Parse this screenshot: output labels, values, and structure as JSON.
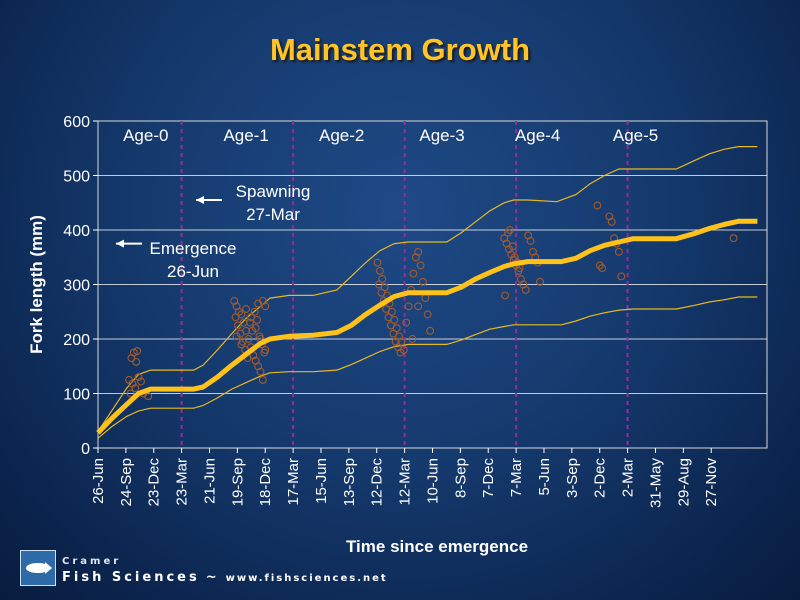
{
  "slide": {
    "title": "Mainstem Growth",
    "footer": {
      "brand_top": "Cramer",
      "brand_bottom": "Fish Sciences",
      "separator": "~",
      "url": "www.fishsciences.net",
      "logo_icon": "fish-logo-icon"
    }
  },
  "chart_data": {
    "type": "line",
    "ylabel": "Fork length (mm)",
    "xlabel": "Time since emergence",
    "ylim": [
      0,
      600
    ],
    "yticks": [
      0,
      100,
      200,
      300,
      400,
      500,
      600
    ],
    "grid": "horizontal",
    "colors": {
      "mean": "#ffc21a",
      "bounds": "#e8b820",
      "points": "#a55a2a",
      "dividers": "#9a2a9a",
      "grid": "#ffffff"
    },
    "x_tick_labels": [
      "26-Jun",
      "24-Sep",
      "23-Dec",
      "23-Mar",
      "21-Jun",
      "19-Sep",
      "18-Dec",
      "17-Mar",
      "15-Jun",
      "13-Sep",
      "12-Dec",
      "12-Mar",
      "10-Jun",
      "8-Sep",
      "7-Dec",
      "7-Mar",
      "5-Jun",
      "3-Sep",
      "2-Dec",
      "2-Mar",
      "31-May",
      "29-Aug",
      "27-Nov"
    ],
    "age_labels": [
      {
        "label": "Age-0",
        "center": 1.0
      },
      {
        "label": "Age-1",
        "center": 3.1
      },
      {
        "label": "Age-2",
        "center": 5.1
      },
      {
        "label": "Age-3",
        "center": 7.2
      },
      {
        "label": "Age-4",
        "center": 9.2
      },
      {
        "label": "Age-5",
        "center": 11.25
      }
    ],
    "age_dividers": [
      3,
      7,
      11,
      15,
      19
    ],
    "annotations": [
      {
        "name": "spawning",
        "lines": [
          "Spawning",
          "27-Mar"
        ],
        "arrow_y": 455
      },
      {
        "name": "emergence",
        "lines": [
          "Emergence",
          "26-Jun"
        ],
        "arrow_y": 375
      }
    ],
    "series": [
      {
        "role": "mean",
        "points": [
          [
            0,
            28
          ],
          [
            0.3,
            55
          ],
          [
            0.6,
            80
          ],
          [
            0.85,
            100
          ],
          [
            1.1,
            108
          ],
          [
            2.0,
            108
          ],
          [
            2.2,
            112
          ],
          [
            2.5,
            130
          ],
          [
            2.8,
            152
          ],
          [
            3.1,
            172
          ],
          [
            3.4,
            192
          ],
          [
            3.6,
            200
          ],
          [
            4.0,
            205
          ],
          [
            4.5,
            207
          ],
          [
            5.0,
            212
          ],
          [
            5.3,
            225
          ],
          [
            5.6,
            245
          ],
          [
            5.9,
            262
          ],
          [
            6.2,
            278
          ],
          [
            6.5,
            285
          ],
          [
            7.3,
            285
          ],
          [
            7.6,
            295
          ],
          [
            7.9,
            310
          ],
          [
            8.2,
            322
          ],
          [
            8.5,
            333
          ],
          [
            8.7,
            338
          ],
          [
            9.0,
            342
          ],
          [
            9.7,
            342
          ],
          [
            10.0,
            348
          ],
          [
            10.3,
            362
          ],
          [
            10.6,
            372
          ],
          [
            10.9,
            378
          ],
          [
            11.2,
            384
          ],
          [
            12.1,
            384
          ],
          [
            12.5,
            394
          ],
          [
            12.8,
            403
          ],
          [
            13.1,
            410
          ],
          [
            13.4,
            416
          ],
          [
            13.8,
            416
          ]
        ]
      },
      {
        "role": "upper",
        "points": [
          [
            0,
            30
          ],
          [
            0.3,
            70
          ],
          [
            0.6,
            110
          ],
          [
            0.85,
            135
          ],
          [
            1.1,
            143
          ],
          [
            2.0,
            143
          ],
          [
            2.2,
            152
          ],
          [
            2.5,
            180
          ],
          [
            2.8,
            210
          ],
          [
            3.1,
            238
          ],
          [
            3.4,
            260
          ],
          [
            3.6,
            275
          ],
          [
            4.0,
            280
          ],
          [
            4.5,
            280
          ],
          [
            5.0,
            290
          ],
          [
            5.3,
            315
          ],
          [
            5.6,
            340
          ],
          [
            5.9,
            362
          ],
          [
            6.2,
            375
          ],
          [
            6.5,
            378
          ],
          [
            7.3,
            378
          ],
          [
            7.6,
            395
          ],
          [
            7.9,
            415
          ],
          [
            8.2,
            435
          ],
          [
            8.5,
            450
          ],
          [
            8.7,
            455
          ],
          [
            9.0,
            455
          ],
          [
            9.6,
            452
          ],
          [
            10.0,
            465
          ],
          [
            10.3,
            485
          ],
          [
            10.6,
            500
          ],
          [
            10.9,
            512
          ],
          [
            11.2,
            512
          ],
          [
            12.1,
            512
          ],
          [
            12.5,
            528
          ],
          [
            12.8,
            540
          ],
          [
            13.1,
            548
          ],
          [
            13.4,
            553
          ],
          [
            13.8,
            553
          ]
        ]
      },
      {
        "role": "lower",
        "points": [
          [
            0,
            18
          ],
          [
            0.3,
            40
          ],
          [
            0.6,
            58
          ],
          [
            0.85,
            68
          ],
          [
            1.1,
            73
          ],
          [
            2.0,
            73
          ],
          [
            2.2,
            78
          ],
          [
            2.5,
            92
          ],
          [
            2.8,
            108
          ],
          [
            3.1,
            120
          ],
          [
            3.4,
            132
          ],
          [
            3.6,
            138
          ],
          [
            4.0,
            140
          ],
          [
            4.5,
            140
          ],
          [
            5.0,
            143
          ],
          [
            5.3,
            153
          ],
          [
            5.6,
            165
          ],
          [
            5.9,
            177
          ],
          [
            6.2,
            186
          ],
          [
            6.5,
            190
          ],
          [
            7.3,
            190
          ],
          [
            7.6,
            198
          ],
          [
            7.9,
            208
          ],
          [
            8.2,
            218
          ],
          [
            8.5,
            223
          ],
          [
            8.7,
            226
          ],
          [
            9.0,
            226
          ],
          [
            9.7,
            226
          ],
          [
            10.0,
            233
          ],
          [
            10.3,
            242
          ],
          [
            10.6,
            248
          ],
          [
            10.9,
            253
          ],
          [
            11.2,
            255
          ],
          [
            12.1,
            255
          ],
          [
            12.5,
            262
          ],
          [
            12.8,
            268
          ],
          [
            13.1,
            272
          ],
          [
            13.4,
            277
          ],
          [
            13.8,
            277
          ]
        ]
      }
    ],
    "observations": [
      [
        0.7,
        165
      ],
      [
        0.75,
        175
      ],
      [
        0.8,
        158
      ],
      [
        0.82,
        178
      ],
      [
        0.95,
        100
      ],
      [
        1.05,
        95
      ],
      [
        0.65,
        125
      ],
      [
        0.72,
        118
      ],
      [
        0.78,
        110
      ],
      [
        0.68,
        100
      ],
      [
        0.85,
        130
      ],
      [
        0.9,
        122
      ],
      [
        2.85,
        270
      ],
      [
        2.9,
        260
      ],
      [
        2.95,
        250
      ],
      [
        3.0,
        245
      ],
      [
        3.05,
        230
      ],
      [
        3.1,
        215
      ],
      [
        3.15,
        200
      ],
      [
        3.2,
        185
      ],
      [
        3.25,
        170
      ],
      [
        3.3,
        160
      ],
      [
        3.35,
        150
      ],
      [
        3.4,
        140
      ],
      [
        3.45,
        125
      ],
      [
        2.88,
        240
      ],
      [
        2.93,
        225
      ],
      [
        2.98,
        210
      ],
      [
        3.03,
        195
      ],
      [
        3.08,
        180
      ],
      [
        3.13,
        165
      ],
      [
        3.18,
        230
      ],
      [
        3.23,
        215
      ],
      [
        3.28,
        250
      ],
      [
        3.33,
        235
      ],
      [
        3.38,
        205
      ],
      [
        3.43,
        190
      ],
      [
        3.48,
        175
      ],
      [
        3.1,
        255
      ],
      [
        3.2,
        240
      ],
      [
        3.3,
        220
      ],
      [
        3.4,
        200
      ],
      [
        3.5,
        180
      ],
      [
        3.5,
        260
      ],
      [
        3.45,
        270
      ],
      [
        2.9,
        205
      ],
      [
        3.0,
        190
      ],
      [
        3.35,
        265
      ],
      [
        5.85,
        340
      ],
      [
        5.9,
        325
      ],
      [
        5.95,
        310
      ],
      [
        6.0,
        295
      ],
      [
        6.05,
        280
      ],
      [
        6.1,
        265
      ],
      [
        6.15,
        250
      ],
      [
        6.2,
        235
      ],
      [
        6.25,
        220
      ],
      [
        6.3,
        205
      ],
      [
        6.35,
        195
      ],
      [
        6.4,
        180
      ],
      [
        5.88,
        300
      ],
      [
        5.93,
        285
      ],
      [
        5.98,
        270
      ],
      [
        6.03,
        255
      ],
      [
        6.08,
        240
      ],
      [
        6.13,
        225
      ],
      [
        6.18,
        210
      ],
      [
        6.23,
        195
      ],
      [
        6.28,
        185
      ],
      [
        6.33,
        175
      ],
      [
        6.45,
        230
      ],
      [
        6.5,
        260
      ],
      [
        6.55,
        290
      ],
      [
        6.6,
        320
      ],
      [
        6.65,
        350
      ],
      [
        6.7,
        360
      ],
      [
        6.75,
        335
      ],
      [
        6.8,
        305
      ],
      [
        6.85,
        275
      ],
      [
        6.9,
        245
      ],
      [
        6.95,
        215
      ],
      [
        6.58,
        200
      ],
      [
        6.7,
        260
      ],
      [
        8.5,
        385
      ],
      [
        8.55,
        375
      ],
      [
        8.6,
        365
      ],
      [
        8.65,
        355
      ],
      [
        8.7,
        345
      ],
      [
        8.75,
        335
      ],
      [
        8.8,
        325
      ],
      [
        8.85,
        310
      ],
      [
        8.9,
        300
      ],
      [
        8.95,
        290
      ],
      [
        8.52,
        280
      ],
      [
        8.58,
        395
      ],
      [
        8.62,
        400
      ],
      [
        8.68,
        370
      ],
      [
        8.72,
        350
      ],
      [
        8.78,
        340
      ],
      [
        8.82,
        330
      ],
      [
        9.0,
        390
      ],
      [
        9.05,
        380
      ],
      [
        9.1,
        360
      ],
      [
        9.15,
        350
      ],
      [
        9.2,
        340
      ],
      [
        9.25,
        305
      ],
      [
        10.45,
        445
      ],
      [
        10.5,
        335
      ],
      [
        10.55,
        330
      ],
      [
        10.7,
        425
      ],
      [
        10.75,
        415
      ],
      [
        10.8,
        385
      ],
      [
        10.85,
        375
      ],
      [
        10.9,
        360
      ],
      [
        10.95,
        315
      ],
      [
        13.3,
        385
      ]
    ],
    "x_range": [
      0,
      14.0
    ]
  }
}
